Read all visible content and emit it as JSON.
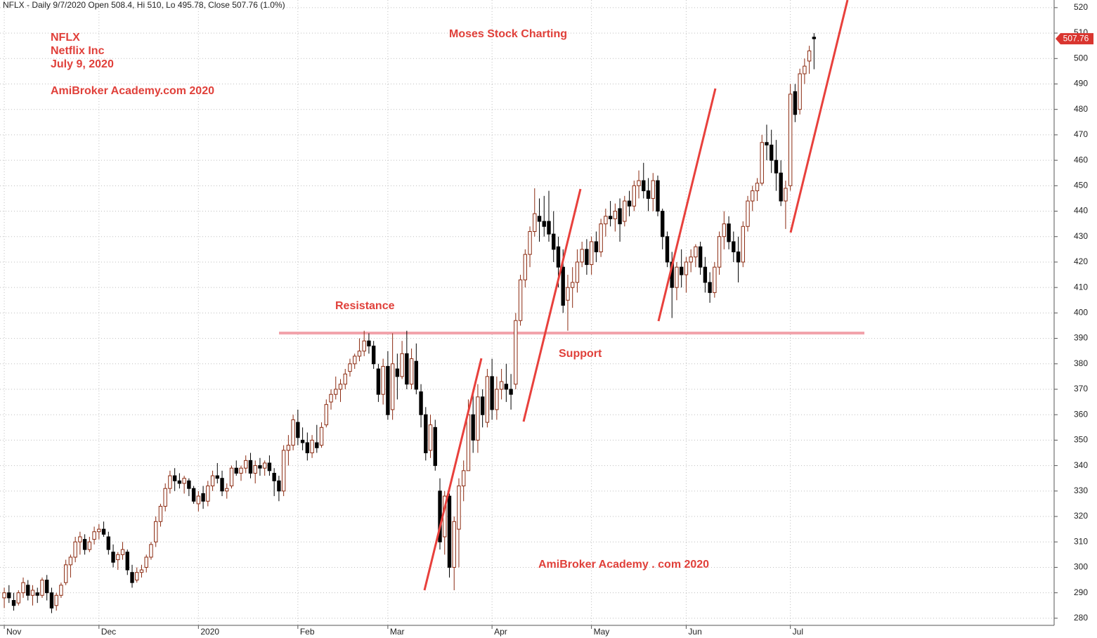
{
  "chart_data": {
    "type": "candlestick",
    "title": "NFLX - Daily 9/7/2020 Open 508.4, Hi 510, Lo 495.78, Close 507.76 (1.0%)",
    "annotations": [
      "NFLX",
      "Netflix Inc",
      "July 9, 2020",
      "AmiBroker Academy.com  2020",
      "Moses Stock Charting",
      "Resistance",
      "Support",
      "AmiBroker Academy . com  2020"
    ],
    "up_color": "#8b2a10",
    "down_color": "#000000",
    "last_color": "#d9352f",
    "grid": true,
    "ylim": [
      277.2,
      523
    ],
    "yticks": [
      280,
      290,
      300,
      310,
      320,
      330,
      340,
      350,
      360,
      370,
      380,
      390,
      400,
      410,
      420,
      430,
      440,
      450,
      460,
      470,
      480,
      490,
      500,
      510,
      520
    ],
    "xlim": [
      -0.9,
      221.7
    ],
    "xticks": [
      {
        "value": 0,
        "label": "Nov"
      },
      {
        "value": 20,
        "label": "Dec"
      },
      {
        "value": 41,
        "label": "2020"
      },
      {
        "value": 62,
        "label": "Feb"
      },
      {
        "value": 81,
        "label": "Mar"
      },
      {
        "value": 103,
        "label": "Apr"
      },
      {
        "value": 124,
        "label": "May"
      },
      {
        "value": 144,
        "label": "Jun"
      },
      {
        "value": 166,
        "label": "Jul"
      }
    ],
    "candles": [
      [
        288,
        292,
        284,
        290
      ],
      [
        290,
        293,
        286,
        288
      ],
      [
        287,
        290,
        283,
        285
      ],
      [
        286,
        291,
        285,
        290
      ],
      [
        290,
        296,
        288,
        294
      ],
      [
        293,
        295,
        287,
        289
      ],
      [
        289,
        293,
        285,
        291
      ],
      [
        290,
        292,
        286,
        289
      ],
      [
        289,
        296,
        288,
        295
      ],
      [
        295,
        297,
        287,
        290
      ],
      [
        290,
        292,
        282,
        284
      ],
      [
        285,
        290,
        283,
        289
      ],
      [
        289,
        294,
        288,
        293
      ],
      [
        294,
        303,
        293,
        301
      ],
      [
        301,
        305,
        296,
        304
      ],
      [
        304,
        312,
        302,
        310
      ],
      [
        310,
        314,
        305,
        312
      ],
      [
        311,
        313,
        305,
        307
      ],
      [
        307,
        312,
        306,
        310
      ],
      [
        311,
        316,
        309,
        314
      ],
      [
        314,
        317,
        311,
        315
      ],
      [
        315,
        318,
        312,
        313
      ],
      [
        312,
        314,
        305,
        307
      ],
      [
        306,
        309,
        300,
        302
      ],
      [
        303,
        306,
        299,
        305
      ],
      [
        305,
        310,
        303,
        307
      ],
      [
        306,
        307,
        297,
        299
      ],
      [
        298,
        301,
        292,
        294
      ],
      [
        295,
        300,
        294,
        298
      ],
      [
        298,
        301,
        296,
        299
      ],
      [
        300,
        305,
        298,
        304
      ],
      [
        304,
        310,
        303,
        309
      ],
      [
        310,
        320,
        308,
        318
      ],
      [
        318,
        325,
        316,
        324
      ],
      [
        324,
        333,
        322,
        331
      ],
      [
        331,
        338,
        329,
        336
      ],
      [
        336,
        339,
        330,
        334
      ],
      [
        334,
        337,
        331,
        333
      ],
      [
        333,
        336,
        329,
        335
      ],
      [
        334,
        335,
        328,
        331
      ],
      [
        331,
        332,
        325,
        326
      ],
      [
        325,
        330,
        322,
        328
      ],
      [
        329,
        332,
        323,
        326
      ],
      [
        326,
        334,
        324,
        332
      ],
      [
        332,
        338,
        330,
        336
      ],
      [
        336,
        341,
        333,
        335
      ],
      [
        335,
        338,
        328,
        330
      ],
      [
        330,
        333,
        327,
        331
      ],
      [
        332,
        340,
        331,
        339
      ],
      [
        339,
        342,
        336,
        337
      ],
      [
        337,
        340,
        334,
        339
      ],
      [
        339,
        344,
        337,
        342
      ],
      [
        342,
        345,
        335,
        337
      ],
      [
        337,
        342,
        333,
        340
      ],
      [
        340,
        343,
        336,
        339
      ],
      [
        339,
        342,
        336,
        341
      ],
      [
        341,
        344,
        336,
        338
      ],
      [
        337,
        339,
        328,
        334
      ],
      [
        334,
        336,
        326,
        330
      ],
      [
        330,
        348,
        328,
        346
      ],
      [
        346,
        352,
        340,
        348
      ],
      [
        348,
        360,
        346,
        358
      ],
      [
        357,
        362,
        348,
        351
      ],
      [
        350,
        355,
        346,
        349
      ],
      [
        349,
        353,
        342,
        345
      ],
      [
        345,
        352,
        343,
        350
      ],
      [
        349,
        356,
        345,
        347
      ],
      [
        348,
        357,
        347,
        355
      ],
      [
        356,
        366,
        355,
        364
      ],
      [
        365,
        370,
        362,
        368
      ],
      [
        368,
        375,
        366,
        370
      ],
      [
        370,
        374,
        365,
        372
      ],
      [
        372,
        378,
        370,
        376
      ],
      [
        377,
        382,
        375,
        380
      ],
      [
        380,
        384,
        378,
        383
      ],
      [
        383,
        390,
        381,
        385
      ],
      [
        385,
        393,
        383,
        389
      ],
      [
        389,
        392,
        384,
        387
      ],
      [
        387,
        389,
        378,
        380
      ],
      [
        378,
        380,
        365,
        368
      ],
      [
        368,
        382,
        364,
        379
      ],
      [
        379,
        385,
        358,
        360
      ],
      [
        362,
        392,
        358,
        380
      ],
      [
        378,
        384,
        366,
        375
      ],
      [
        375,
        389,
        374,
        384
      ],
      [
        384,
        393,
        370,
        372
      ],
      [
        372,
        386,
        370,
        382
      ],
      [
        381,
        388,
        368,
        370
      ],
      [
        369,
        372,
        355,
        360
      ],
      [
        360,
        363,
        342,
        345
      ],
      [
        346,
        360,
        343,
        356
      ],
      [
        355,
        358,
        338,
        340
      ],
      [
        330,
        335,
        307,
        310
      ],
      [
        312,
        330,
        305,
        328
      ],
      [
        328,
        329,
        296,
        300
      ],
      [
        300,
        320,
        291,
        318
      ],
      [
        315,
        335,
        300,
        332
      ],
      [
        332,
        342,
        326,
        338
      ],
      [
        338,
        366,
        338,
        360
      ],
      [
        360,
        370,
        345,
        350
      ],
      [
        350,
        372,
        345,
        367
      ],
      [
        367,
        370,
        355,
        360
      ],
      [
        357,
        378,
        355,
        375
      ],
      [
        375,
        382,
        358,
        362
      ],
      [
        362,
        375,
        358,
        370
      ],
      [
        370,
        378,
        366,
        373
      ],
      [
        372,
        380,
        365,
        370
      ],
      [
        370,
        376,
        362,
        368
      ],
      [
        372,
        400,
        370,
        397
      ],
      [
        397,
        415,
        395,
        413
      ],
      [
        413,
        425,
        410,
        423
      ],
      [
        423,
        434,
        418,
        432
      ],
      [
        432,
        449,
        430,
        439
      ],
      [
        438,
        445,
        428,
        436
      ],
      [
        436,
        446,
        430,
        434
      ],
      [
        436,
        448,
        428,
        431
      ],
      [
        431,
        440,
        420,
        425
      ],
      [
        426,
        430,
        410,
        418
      ],
      [
        418,
        425,
        400,
        403
      ],
      [
        405,
        415,
        393,
        410
      ],
      [
        410,
        418,
        402,
        412
      ],
      [
        412,
        425,
        408,
        420
      ],
      [
        420,
        428,
        418,
        425
      ],
      [
        425,
        429,
        415,
        419
      ],
      [
        419,
        430,
        415,
        428
      ],
      [
        428,
        432,
        420,
        424
      ],
      [
        424,
        437,
        422,
        435
      ],
      [
        435,
        441,
        430,
        438
      ],
      [
        438,
        444,
        434,
        437
      ],
      [
        437,
        443,
        432,
        440
      ],
      [
        441,
        445,
        428,
        435
      ],
      [
        436,
        446,
        434,
        444
      ],
      [
        444,
        448,
        438,
        442
      ],
      [
        442,
        452,
        440,
        450
      ],
      [
        450,
        456,
        445,
        452
      ],
      [
        452,
        459,
        445,
        448
      ],
      [
        448,
        453,
        440,
        445
      ],
      [
        445,
        455,
        440,
        452
      ],
      [
        452,
        454,
        438,
        440
      ],
      [
        440,
        441,
        425,
        430
      ],
      [
        430,
        432,
        418,
        420
      ],
      [
        420,
        424,
        398,
        410
      ],
      [
        410,
        420,
        405,
        418
      ],
      [
        418,
        425,
        410,
        415
      ],
      [
        415,
        422,
        408,
        420
      ],
      [
        420,
        425,
        416,
        422
      ],
      [
        422,
        427,
        418,
        426
      ],
      [
        426,
        428,
        415,
        418
      ],
      [
        418,
        422,
        408,
        412
      ],
      [
        412,
        416,
        404,
        408
      ],
      [
        408,
        420,
        406,
        418
      ],
      [
        418,
        432,
        415,
        430
      ],
      [
        430,
        440,
        425,
        435
      ],
      [
        435,
        438,
        425,
        428
      ],
      [
        428,
        432,
        420,
        424
      ],
      [
        424,
        430,
        412,
        420
      ],
      [
        420,
        436,
        418,
        434
      ],
      [
        434,
        446,
        432,
        444
      ],
      [
        444,
        450,
        440,
        448
      ],
      [
        448,
        453,
        444,
        451
      ],
      [
        451,
        470,
        450,
        467
      ],
      [
        467,
        474,
        460,
        466
      ],
      [
        466,
        472,
        455,
        460
      ],
      [
        460,
        468,
        448,
        455
      ],
      [
        455,
        460,
        442,
        444
      ],
      [
        444,
        452,
        433,
        449
      ],
      [
        450,
        490,
        448,
        486
      ],
      [
        487,
        490,
        475,
        478
      ],
      [
        480,
        496,
        478,
        494
      ],
      [
        494,
        500,
        490,
        497
      ],
      [
        499,
        505,
        494,
        503
      ],
      [
        508.4,
        510,
        495.78,
        507.76
      ]
    ]
  }
}
